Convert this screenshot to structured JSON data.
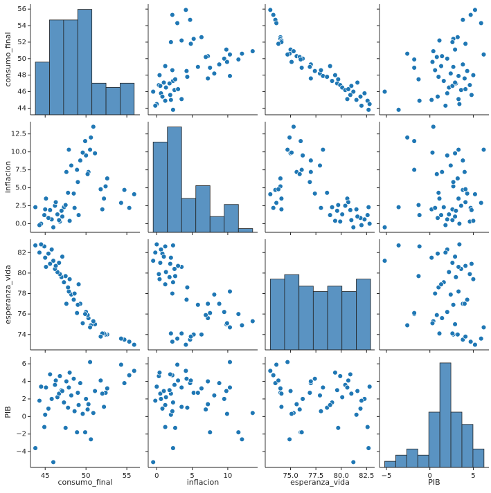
{
  "chart_data": {
    "type": "pairplot",
    "color": "#1f77b4",
    "hist_color": "#5a93c2",
    "variables": [
      {
        "name": "consumo_final",
        "lim": [
          43.2,
          56.6
        ],
        "xticks": [
          45,
          50,
          55
        ],
        "yticks": [
          44,
          46,
          48,
          50,
          52,
          54,
          56
        ],
        "hist": {
          "bins": [
            43.8,
            45.53,
            47.26,
            48.99,
            50.72,
            52.45,
            54.18,
            55.9
          ],
          "counts": [
            5,
            9,
            9,
            10,
            3,
            2.6,
            3
          ],
          "count_lim": [
            0,
            10.5
          ]
        },
        "values": [
          55.9,
          55.3,
          54.7,
          54.3,
          52.6,
          52.4,
          52.2,
          52.0,
          51.8,
          51.1,
          50.9,
          50.6,
          50.5,
          50.3,
          50.2,
          50.0,
          49.9,
          49.6,
          49.3,
          49.0,
          48.9,
          48.5,
          48.2,
          47.9,
          47.8,
          47.6,
          47.3,
          47.0,
          46.8,
          46.5,
          46.2,
          46.0,
          45.8,
          45.6,
          45.4,
          45.1,
          44.9,
          44.5,
          44.3,
          43.8,
          46.7,
          47.5,
          48.0,
          49.1,
          45.0,
          46.3,
          47.1,
          48.6
        ]
      },
      {
        "name": "inflacion",
        "lim": [
          -1.2,
          14.2
        ],
        "xticks": [
          0,
          5,
          10
        ],
        "yticks": [
          {
            "value": 0,
            "label": "0.0"
          },
          2.5,
          {
            "value": 5,
            "label": "5.0"
          },
          7.5,
          {
            "value": 10,
            "label": "10.0"
          },
          12.5
        ],
        "hist": {
          "bins": [
            -0.5,
            1.5,
            3.5,
            5.5,
            7.5,
            9.5,
            11.5,
            13.5
          ],
          "counts": [
            12,
            14,
            4.5,
            6.2,
            2.1,
            3.7,
            0.5
          ],
          "count_lim": [
            0,
            14.7
          ]
        },
        "values": [
          4.1,
          2.2,
          4.7,
          2.9,
          6.3,
          5.2,
          3.5,
          2.0,
          4.8,
          9.8,
          13.5,
          12.0,
          10.3,
          7.2,
          6.9,
          9.5,
          11.5,
          9.9,
          8.8,
          5.8,
          7.5,
          4.2,
          8.1,
          10.3,
          4.3,
          7.2,
          2.3,
          1.8,
          0.3,
          1.3,
          2.5,
          -0.5,
          0.6,
          1.9,
          0.8,
          3.5,
          1.2,
          0.0,
          -0.2,
          2.3,
          0.5,
          2.6,
          0.4,
          1.2,
          2.0,
          3.0,
          1.0,
          2.2
        ]
      },
      {
        "name": "esperanza_vida",
        "lim": [
          72.5,
          83.3
        ],
        "xticks": [
          {
            "value": 75,
            "label": "75.0"
          },
          77.5,
          {
            "value": 80,
            "label": "80.0"
          },
          82.5
        ],
        "yticks": [
          74,
          76,
          78,
          80,
          82
        ],
        "hist": {
          "bins": [
            73.0,
            74.41,
            75.83,
            77.24,
            78.66,
            80.07,
            81.49,
            82.9
          ],
          "counts": [
            8,
            8.5,
            7.2,
            6.6,
            7.2,
            6.6,
            8
          ],
          "count_lim": [
            0,
            12.5
          ]
        },
        "values": [
          73.0,
          73.3,
          73.5,
          73.6,
          74.0,
          74.0,
          74.1,
          74.1,
          73.8,
          75.0,
          75.3,
          74.9,
          74.7,
          75.6,
          75.9,
          76.2,
          76.0,
          75.1,
          77.0,
          76.9,
          76.1,
          77.4,
          77.9,
          78.2,
          78.6,
          77.0,
          79.1,
          79.6,
          79.9,
          80.1,
          80.4,
          81.2,
          82.3,
          80.9,
          81.9,
          80.6,
          82.6,
          82.8,
          82.0,
          82.7,
          81.0,
          79.7,
          79.4,
          78.9,
          81.5,
          80.7,
          81.6,
          78.0
        ]
      },
      {
        "name": "PIB",
        "lim": [
          -5.8,
          6.8
        ],
        "xticks": [
          {
            "value": -5,
            "label": "−5"
          },
          0,
          5
        ],
        "yticks": [
          {
            "value": -4,
            "label": "−4"
          },
          {
            "value": -2,
            "label": "−2"
          },
          0,
          2,
          4,
          6
        ],
        "hist": {
          "bins": [
            -5.2,
            -3.93,
            -2.66,
            -1.39,
            -0.12,
            1.15,
            2.42,
            3.69,
            4.96,
            6.23
          ],
          "counts": [
            1,
            2,
            3,
            2,
            9,
            17,
            9,
            7,
            3
          ],
          "count_lim": [
            0,
            18
          ]
        },
        "values": [
          5.2,
          4.7,
          3.8,
          5.9,
          3.2,
          2.7,
          1.1,
          2.6,
          4.1,
          2.9,
          0.4,
          -2.6,
          6.2,
          1.4,
          0.8,
          2.0,
          -1.8,
          0.3,
          3.8,
          2.7,
          -1.8,
          4.3,
          2.4,
          3.3,
          1.0,
          4.0,
          1.6,
          3.0,
          4.6,
          2.2,
          3.6,
          -5.2,
          2.0,
          4.8,
          0.9,
          3.3,
          -1.2,
          3.4,
          1.8,
          -3.6,
          2.6,
          -1.3,
          5.0,
          1.3,
          0.2,
          4.1,
          2.9,
          0.6
        ]
      }
    ]
  }
}
